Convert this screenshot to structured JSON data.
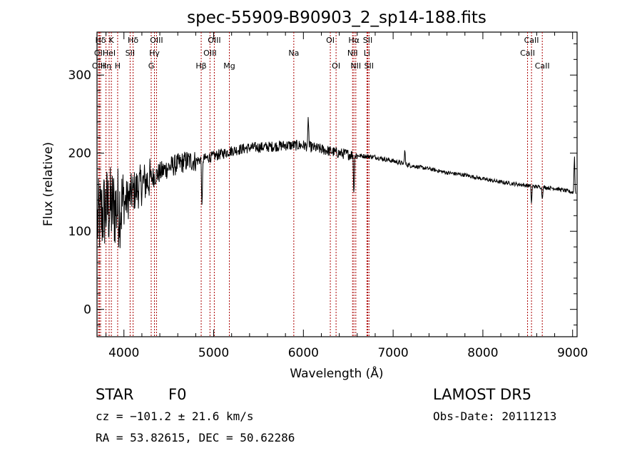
{
  "chart_data": {
    "type": "line",
    "title": "spec-55909-B90903_2_sp14-188.fits",
    "xlabel": "Wavelength (Å)",
    "ylabel": "Flux (relative)",
    "xlim": [
      3700,
      9050
    ],
    "ylim": [
      -35,
      355
    ],
    "x_ticks": [
      4000,
      5000,
      6000,
      7000,
      8000,
      9000
    ],
    "y_ticks": [
      0,
      100,
      200,
      300
    ],
    "grid": false,
    "line_color": "#000000",
    "marker_color": "#aa0000",
    "spectral_lines": [
      {
        "label": "Hδ",
        "x": 3740,
        "row": 0
      },
      {
        "label": "OII",
        "x": 3727,
        "row": 1
      },
      {
        "label": "OIII",
        "x": 3716,
        "row": 2
      },
      {
        "label": "K",
        "x": 3860,
        "row": 0
      },
      {
        "label": "HeI",
        "x": 3835,
        "row": 1
      },
      {
        "label": "Hη",
        "x": 3800,
        "row": 2
      },
      {
        "label": "H",
        "x": 3930,
        "row": 2
      },
      {
        "label": "Hδ",
        "x": 4102,
        "row": 0
      },
      {
        "label": "SII",
        "x": 4069,
        "row": 1
      },
      {
        "label": "OIII",
        "x": 4363,
        "row": 0
      },
      {
        "label": "Hγ",
        "x": 4340,
        "row": 1
      },
      {
        "label": "G",
        "x": 4304,
        "row": 2
      },
      {
        "label": "Hβ",
        "x": 4861,
        "row": 2
      },
      {
        "label": "OIII",
        "x": 5007,
        "row": 0
      },
      {
        "label": "OIII",
        "x": 4959,
        "row": 1
      },
      {
        "label": "Mg",
        "x": 5175,
        "row": 2
      },
      {
        "label": "Na",
        "x": 5893,
        "row": 1
      },
      {
        "label": "OI",
        "x": 6300,
        "row": 0
      },
      {
        "label": "OI",
        "x": 6364,
        "row": 2
      },
      {
        "label": "Hα",
        "x": 6563,
        "row": 0
      },
      {
        "label": "NII",
        "x": 6548,
        "row": 1
      },
      {
        "label": "NII",
        "x": 6584,
        "row": 2
      },
      {
        "label": "SII",
        "x": 6717,
        "row": 0
      },
      {
        "label": "Li",
        "x": 6708,
        "row": 1
      },
      {
        "label": "SII",
        "x": 6731,
        "row": 2
      },
      {
        "label": "CaII",
        "x": 8498,
        "row": 1
      },
      {
        "label": "CaII",
        "x": 8542,
        "row": 0
      },
      {
        "label": "CaII",
        "x": 8662,
        "row": 2
      }
    ],
    "continuum": [
      [
        3700,
        110
      ],
      [
        3800,
        130
      ],
      [
        3900,
        130
      ],
      [
        4000,
        135
      ],
      [
        4100,
        150
      ],
      [
        4200,
        160
      ],
      [
        4300,
        168
      ],
      [
        4400,
        175
      ],
      [
        4500,
        182
      ],
      [
        4600,
        186
      ],
      [
        4700,
        190
      ],
      [
        4800,
        190
      ],
      [
        4900,
        193
      ],
      [
        5000,
        196
      ],
      [
        5200,
        203
      ],
      [
        5400,
        207
      ],
      [
        5600,
        208
      ],
      [
        5800,
        210
      ],
      [
        6000,
        210
      ],
      [
        6200,
        205
      ],
      [
        6400,
        200
      ],
      [
        6600,
        197
      ],
      [
        6800,
        195
      ],
      [
        7000,
        190
      ],
      [
        7200,
        184
      ],
      [
        7400,
        180
      ],
      [
        7600,
        175
      ],
      [
        7800,
        172
      ],
      [
        8000,
        167
      ],
      [
        8200,
        163
      ],
      [
        8400,
        160
      ],
      [
        8600,
        157
      ],
      [
        8800,
        155
      ],
      [
        9000,
        150
      ]
    ],
    "notable_features": [
      {
        "x": 4870,
        "y": 120
      },
      {
        "x": 6055,
        "y": 250
      },
      {
        "x": 6563,
        "y": 140
      },
      {
        "x": 7130,
        "y": 205
      },
      {
        "x": 8542,
        "y": 134
      },
      {
        "x": 8662,
        "y": 140
      },
      {
        "x": 9020,
        "y": 200
      }
    ]
  },
  "footer": {
    "object_type": "STAR",
    "subclass": "F0",
    "survey": "LAMOST DR5",
    "redshift": "cz = −101.2 ± 21.6 km/s",
    "obs_date": "Obs-Date: 20111213",
    "coords": "RA =  53.82615, DEC =  50.62286"
  }
}
